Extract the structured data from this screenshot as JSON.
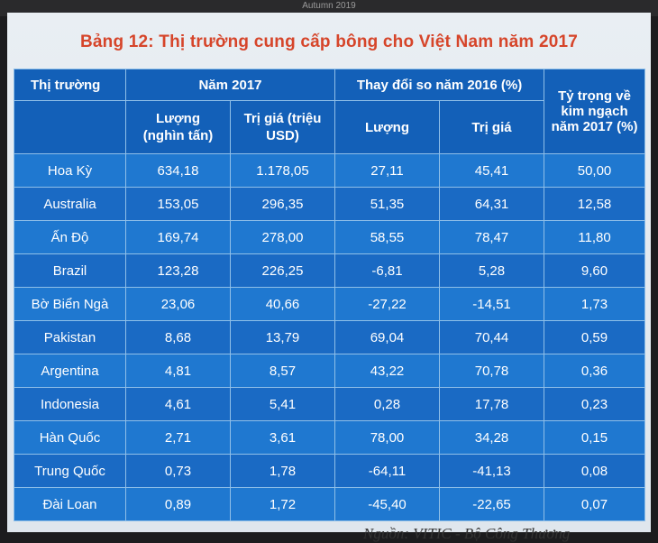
{
  "topbar": {
    "text": "Autumn 2019"
  },
  "title": "Bảng 12: Thị trường cung cấp bông cho Việt Nam năm 2017",
  "headers": {
    "market": "Thị trường",
    "year_group": "Năm 2017",
    "change_group": "Thay đổi so năm 2016 (%)",
    "share": "Tỷ trọng về kim ngạch năm 2017 (%)",
    "volume_2017": "Lượng (nghìn tấn)",
    "value_2017": "Trị giá (triệu USD)",
    "volume_change": "Lượng",
    "value_change": "Trị giá"
  },
  "rows": [
    {
      "market": "Hoa Kỳ",
      "volume": "634,18",
      "value": "1.178,05",
      "vol_change": "27,11",
      "val_change": "45,41",
      "share": "50,00"
    },
    {
      "market": "Australia",
      "volume": "153,05",
      "value": "296,35",
      "vol_change": "51,35",
      "val_change": "64,31",
      "share": "12,58"
    },
    {
      "market": "Ấn Độ",
      "volume": "169,74",
      "value": "278,00",
      "vol_change": "58,55",
      "val_change": "78,47",
      "share": "11,80"
    },
    {
      "market": "Brazil",
      "volume": "123,28",
      "value": "226,25",
      "vol_change": "-6,81",
      "val_change": "5,28",
      "share": "9,60"
    },
    {
      "market": "Bờ Biển Ngà",
      "volume": "23,06",
      "value": "40,66",
      "vol_change": "-27,22",
      "val_change": "-14,51",
      "share": "1,73"
    },
    {
      "market": "Pakistan",
      "volume": "8,68",
      "value": "13,79",
      "vol_change": "69,04",
      "val_change": "70,44",
      "share": "0,59"
    },
    {
      "market": "Argentina",
      "volume": "4,81",
      "value": "8,57",
      "vol_change": "43,22",
      "val_change": "70,78",
      "share": "0,36"
    },
    {
      "market": "Indonesia",
      "volume": "4,61",
      "value": "5,41",
      "vol_change": "0,28",
      "val_change": "17,78",
      "share": "0,23"
    },
    {
      "market": "Hàn Quốc",
      "volume": "2,71",
      "value": "3,61",
      "vol_change": "78,00",
      "val_change": "34,28",
      "share": "0,15"
    },
    {
      "market": "Trung Quốc",
      "volume": "0,73",
      "value": "1,78",
      "vol_change": "-64,11",
      "val_change": "-41,13",
      "share": "0,08"
    },
    {
      "market": "Đài Loan",
      "volume": "0,89",
      "value": "1,72",
      "vol_change": "-45,40",
      "val_change": "-22,65",
      "share": "0,07"
    }
  ],
  "source": "Nguồn: VITIC - Bộ Công Thương"
}
